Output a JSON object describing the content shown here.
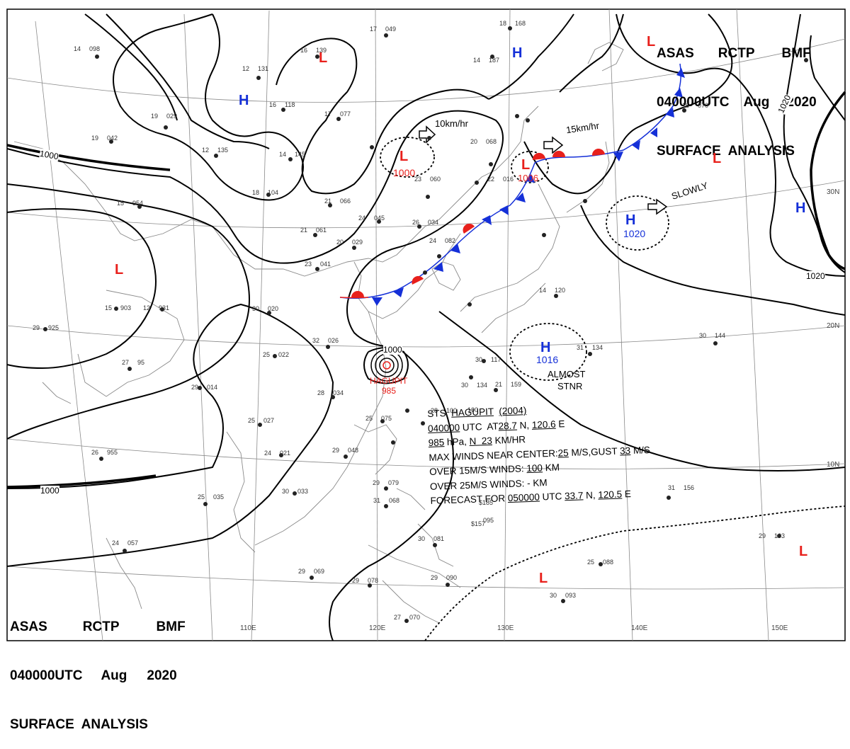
{
  "header": {
    "line1": [
      "ASAS",
      "RCTP",
      "BMF"
    ],
    "line2": [
      "040000UTC",
      "Aug",
      "2020"
    ],
    "line3": "SURFACE  ANALYSIS"
  },
  "isobar_labels": {
    "i1000_left": "1000",
    "i1000_bottom": "1000",
    "i1000_typhoon": "1000",
    "i1020_right": "1020",
    "i1020_top": "1020"
  },
  "lat_labels": [
    "30N",
    "20N",
    "10N"
  ],
  "lon_labels": [
    "110E",
    "120E",
    "130E",
    "140E",
    "150E"
  ],
  "systems": [
    {
      "id": "low-north-china",
      "symbol": "L",
      "pressure": "1000",
      "kind": "low"
    },
    {
      "id": "low-korea",
      "symbol": "L",
      "pressure": "1006",
      "kind": "low"
    },
    {
      "id": "high-ne-pacific",
      "symbol": "H",
      "pressure": "1020",
      "kind": "high"
    },
    {
      "id": "high-south",
      "symbol": "H",
      "pressure": "1016",
      "kind": "high"
    },
    {
      "id": "typhoon",
      "name": "HAGUPIT",
      "pressure": "985"
    }
  ],
  "symbols": {
    "high": "H",
    "low": "L"
  },
  "motions": {
    "m1": "10km/hr",
    "m2": "15km/hr",
    "m3": "SLOWLY",
    "m4a": "ALMOST",
    "m4b": "STNR"
  },
  "typhoon_info": {
    "l1_prefix": "STS  ",
    "l1_name": "HAGUPIT",
    "l1_code": "(2004)",
    "l2_time": "040000",
    "l2_mid": " UTC  AT",
    "l2_lat": "28.7",
    "l2_n": " N, ",
    "l2_lon": "120.6",
    "l2_e": " E",
    "l3_pres": "985",
    "l3_mid": " hPa, ",
    "l3_dir": "N",
    "l3_speed": "  23",
    "l3_unit": " KM/HR",
    "l4_a": "MAX WINDS NEAR CENTER:",
    "l4_b": "25",
    "l4_c": " M/S,GUST ",
    "l4_d": "33",
    "l4_e": " M/S",
    "l5_a": "OVER 15M/S WINDS: ",
    "l5_b": "100",
    "l5_c": " KM",
    "l6": "OVER 25M/S WINDS: - KM",
    "l7_a": "FORECAST FOR ",
    "l7_b": "050000",
    "l7_c": " UTC ",
    "l7_d": "33.7",
    "l7_e": " N, ",
    "l7_f": "120.5",
    "l7_g": " E"
  },
  "stations": [
    {
      "t": "17",
      "p": "049"
    },
    {
      "t": "18",
      "p": "168"
    },
    {
      "t": "14",
      "p": "098"
    },
    {
      "t": "16",
      "p": "139"
    },
    {
      "t": "12",
      "p": "131"
    },
    {
      "t": "16",
      "p": "118"
    },
    {
      "t": "17",
      "p": "077"
    },
    {
      "t": "14",
      "p": "187"
    },
    {
      "t": "19",
      "p": "029"
    },
    {
      "t": "19",
      "p": "042"
    },
    {
      "t": "12",
      "p": "135"
    },
    {
      "t": "14",
      "p": "145"
    },
    {
      "t": "18",
      "p": "104"
    },
    {
      "t": "21",
      "p": "066"
    },
    {
      "t": "15",
      "p": "954"
    },
    {
      "t": "21",
      "p": "061"
    },
    {
      "t": "24",
      "p": "045"
    },
    {
      "t": "26",
      "p": "034"
    },
    {
      "t": "20",
      "p": "029"
    },
    {
      "t": "23",
      "p": "041"
    },
    {
      "t": "12",
      "p": "931"
    },
    {
      "t": "15",
      "p": "903"
    },
    {
      "t": "29",
      "p": "925"
    },
    {
      "t": "30",
      "p": "020"
    },
    {
      "t": "32",
      "p": "026"
    },
    {
      "t": "25",
      "p": "022"
    },
    {
      "t": "27",
      "p": "95"
    },
    {
      "t": "29",
      "p": "014"
    },
    {
      "t": "28",
      "p": "034"
    },
    {
      "t": "25",
      "p": "027"
    },
    {
      "t": "25",
      "p": "075"
    },
    {
      "t": "26",
      "p": "955"
    },
    {
      "t": "24",
      "p": "021"
    },
    {
      "t": "29",
      "p": "048"
    },
    {
      "t": "30",
      "p": "033"
    },
    {
      "t": "25",
      "p": "035"
    },
    {
      "t": "29",
      "p": "079"
    },
    {
      "t": "31",
      "p": "068"
    },
    {
      "t": "24",
      "p": "057"
    },
    {
      "t": "29",
      "p": "069"
    },
    {
      "t": "29",
      "p": "078"
    },
    {
      "t": "27",
      "p": "070"
    },
    {
      "t": "30",
      "p": "081"
    },
    {
      "t": "29",
      "p": "090"
    },
    {
      "t": "25",
      "p": "088"
    },
    {
      "t": "30",
      "p": "093"
    },
    {
      "t": "29",
      "p": "103"
    },
    {
      "t": "31",
      "p": "156"
    },
    {
      "t": "30",
      "p": "144"
    },
    {
      "t": "31",
      "p": "134"
    },
    {
      "t": "30",
      "p": "117"
    },
    {
      "t": "30",
      "p": "134"
    },
    {
      "t": "21",
      "p": "159"
    },
    {
      "t": "14",
      "p": "120"
    },
    {
      "t": "16",
      "p": "070"
    },
    {
      "t": "20",
      "p": "068"
    },
    {
      "t": "22",
      "p": "016"
    },
    {
      "t": "23",
      "p": "060"
    },
    {
      "t": "24",
      "p": "082"
    },
    {
      "t": "28",
      "p": "100"
    },
    {
      "t": "100",
      "p": ""
    },
    {
      "t": "$185",
      "p": ""
    },
    {
      "t": "$157",
      "p": ""
    },
    {
      "t": "095",
      "p": ""
    }
  ],
  "colors": {
    "high": "#1530d8",
    "low": "#e8201c",
    "warm": "#e8201c",
    "cold": "#1530d8",
    "isobar": "#000000",
    "grid": "#707070",
    "land": "#8a8a8a"
  }
}
